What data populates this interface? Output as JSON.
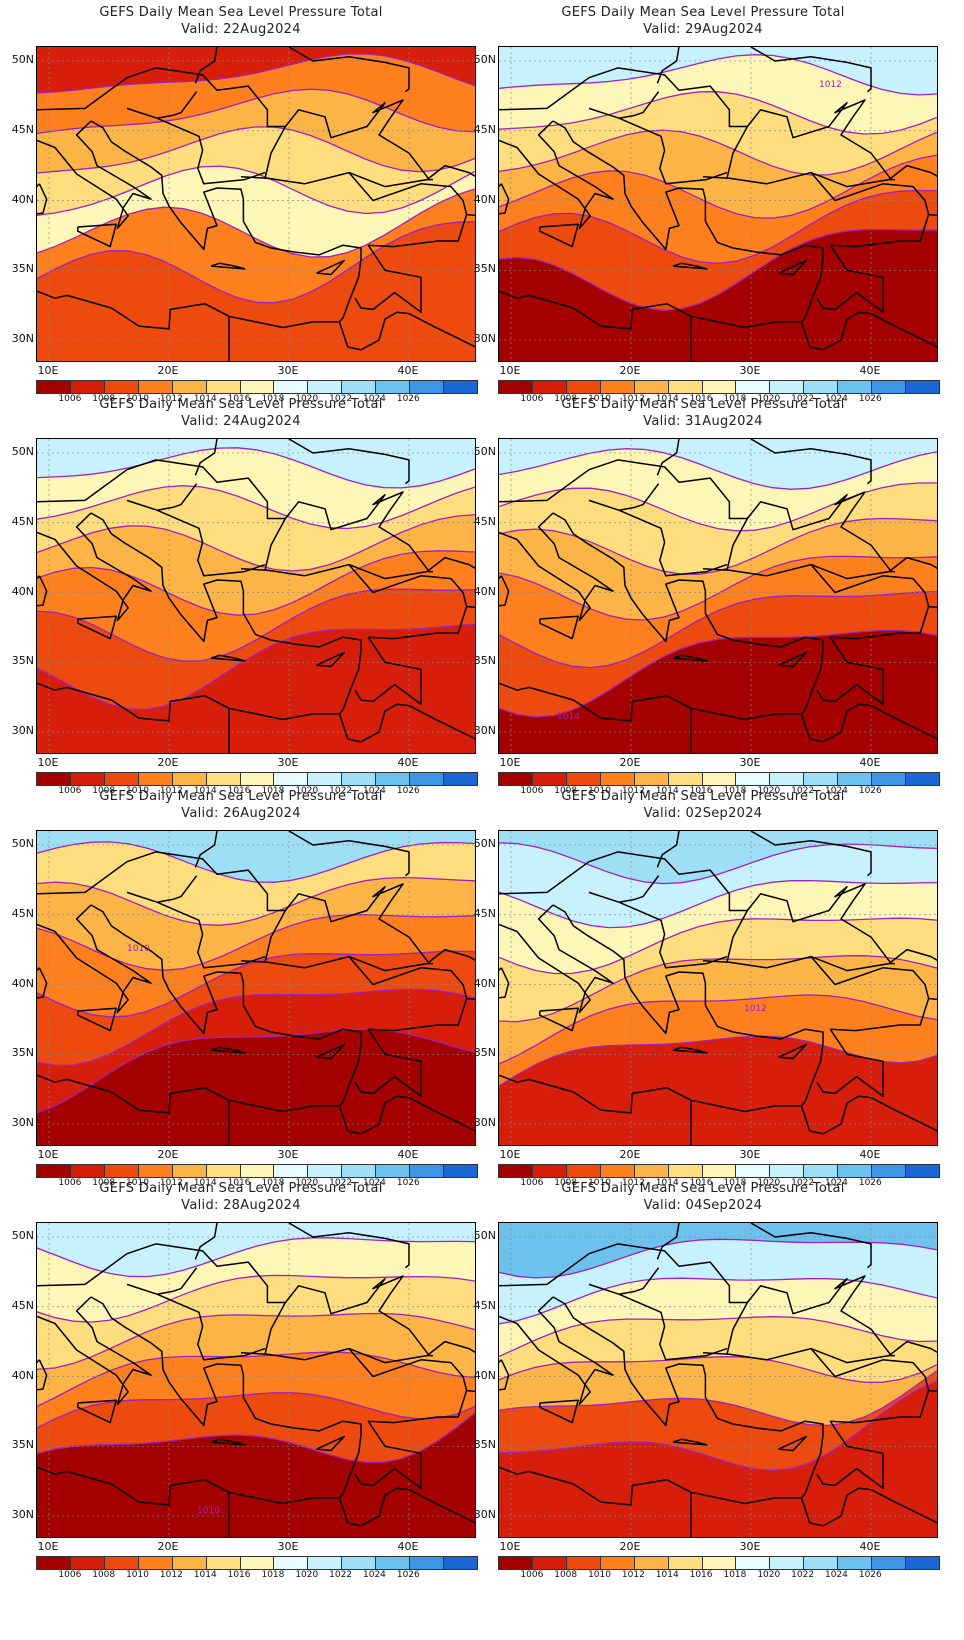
{
  "panels": [
    {
      "title": "GEFS Daily Mean Sea Level Pressure Total",
      "valid": "Valid: 22Aug2024",
      "levels": [
        1,
        3,
        4,
        5,
        6,
        3,
        2
      ],
      "label": ""
    },
    {
      "title": "GEFS Daily Mean Sea Level Pressure Total",
      "valid": "Valid: 29Aug2024",
      "levels": [
        8,
        6,
        5,
        4,
        3,
        2,
        0
      ],
      "label": "1012"
    },
    {
      "title": "GEFS Daily Mean Sea Level Pressure Total",
      "valid": "Valid: 24Aug2024",
      "levels": [
        8,
        6,
        5,
        4,
        3,
        2,
        1
      ],
      "label": ""
    },
    {
      "title": "GEFS Daily Mean Sea Level Pressure Total",
      "valid": "Valid: 31Aug2024",
      "levels": [
        8,
        6,
        5,
        4,
        3,
        2,
        0
      ],
      "label": "1014"
    },
    {
      "title": "GEFS Daily Mean Sea Level Pressure Total",
      "valid": "Valid: 26Aug2024",
      "levels": [
        9,
        5,
        4,
        3,
        2,
        1,
        0
      ],
      "label": "1010"
    },
    {
      "title": "GEFS Daily Mean Sea Level Pressure Total",
      "valid": "Valid: 02Sep2024",
      "levels": [
        9,
        8,
        6,
        5,
        4,
        3,
        1
      ],
      "label": "1012"
    },
    {
      "title": "GEFS Daily Mean Sea Level Pressure Total",
      "valid": "Valid: 28Aug2024",
      "levels": [
        8,
        6,
        5,
        4,
        3,
        2,
        0
      ],
      "label": "1010"
    },
    {
      "title": "GEFS Daily Mean Sea Level Pressure Total",
      "valid": "Valid: 04Sep2024",
      "levels": [
        10,
        8,
        6,
        5,
        4,
        2,
        1
      ],
      "label": ""
    }
  ],
  "lat_labels": [
    "50N",
    "45N",
    "40N",
    "35N",
    "30N"
  ],
  "lon_labels": [
    "10E",
    "20E",
    "30E",
    "40E"
  ],
  "colorbar": {
    "labels": [
      "1006",
      "1008",
      "1010",
      "1012",
      "1014",
      "1016",
      "1018",
      "1020",
      "1022",
      "1024",
      "1026"
    ],
    "colors": [
      "#a50000",
      "#d61e0b",
      "#ec4a0e",
      "#fe7f1e",
      "#fcb446",
      "#fedd7e",
      "#fef6b6",
      "#e6fcff",
      "#c7f2fd",
      "#9edff6",
      "#6cc1ef",
      "#3d96e5",
      "#1d66d6"
    ]
  },
  "contour_color": "#a020c0",
  "land_border_color": "#000000"
}
